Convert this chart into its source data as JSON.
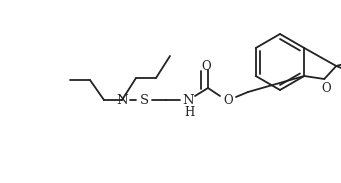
{
  "bg_color": "#ffffff",
  "line_color": "#222222",
  "line_width": 1.3,
  "font_size": 8.5,
  "figsize": [
    3.41,
    1.83
  ],
  "dpi": 100,
  "labels": {
    "N": "N",
    "S": "S",
    "NH": "N",
    "H": "H",
    "O_carbonyl": "O",
    "O_ester": "O",
    "O_ring": "O"
  }
}
